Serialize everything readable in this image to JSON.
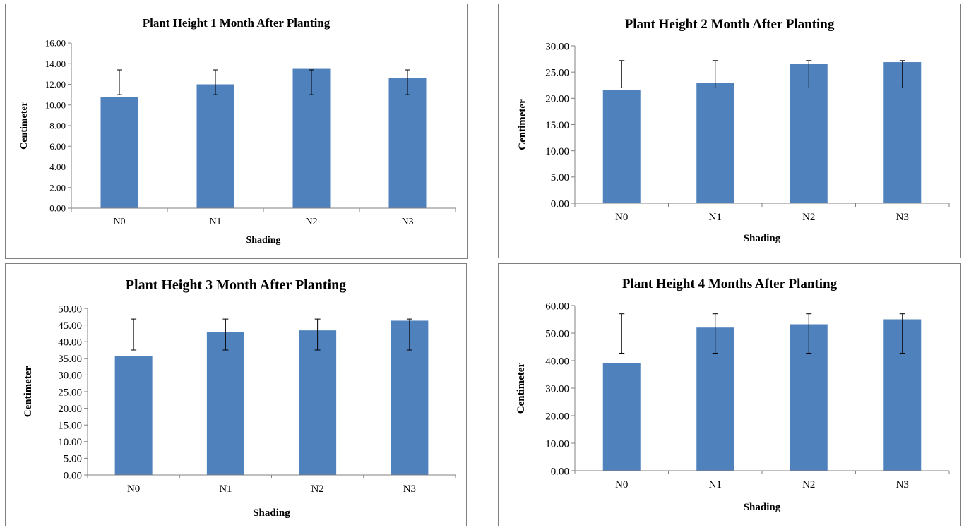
{
  "chart_data": [
    {
      "type": "bar",
      "title": "Plant Height 1 Month After Planting",
      "xlabel": "Shading",
      "ylabel": "Centimeter",
      "categories": [
        "N0",
        "N1",
        "N2",
        "N3"
      ],
      "values": [
        10.75,
        12.0,
        13.5,
        12.65
      ],
      "error_low": [
        11.0,
        11.0,
        11.0,
        11.0
      ],
      "error_high": [
        13.4,
        13.4,
        13.4,
        13.4
      ],
      "ylim": [
        0,
        16
      ],
      "ytick_step": 2,
      "ytick_labels": [
        "0.00",
        "2.00",
        "4.00",
        "6.00",
        "8.00",
        "10.00",
        "12.00",
        "14.00",
        "16.00"
      ],
      "grid": false,
      "legend": "none"
    },
    {
      "type": "bar",
      "title": "Plant Height 2 Month After Planting",
      "xlabel": "Shading",
      "ylabel": "Centimeter",
      "categories": [
        "N0",
        "N1",
        "N2",
        "N3"
      ],
      "values": [
        21.6,
        22.9,
        26.6,
        26.9
      ],
      "error_low": [
        22.0,
        22.0,
        22.0,
        22.0
      ],
      "error_high": [
        27.2,
        27.2,
        27.2,
        27.2
      ],
      "ylim": [
        0,
        30
      ],
      "ytick_step": 5,
      "ytick_labels": [
        "0.00",
        "5.00",
        "10.00",
        "15.00",
        "20.00",
        "25.00",
        "30.00"
      ],
      "grid": false,
      "legend": "none"
    },
    {
      "type": "bar",
      "title": "Plant Height 3 Month After Planting",
      "xlabel": "Shading",
      "ylabel": "Centimeter",
      "categories": [
        "N0",
        "N1",
        "N2",
        "N3"
      ],
      "values": [
        35.6,
        42.9,
        43.4,
        46.3
      ],
      "error_low": [
        37.5,
        37.5,
        37.5,
        37.5
      ],
      "error_high": [
        46.8,
        46.8,
        46.8,
        46.8
      ],
      "ylim": [
        0,
        50
      ],
      "ytick_step": 5,
      "ytick_labels": [
        "0.00",
        "5.00",
        "10.00",
        "15.00",
        "20.00",
        "25.00",
        "30.00",
        "35.00",
        "40.00",
        "45.00",
        "50.00"
      ],
      "grid": false,
      "legend": "none"
    },
    {
      "type": "bar",
      "title": "Plant Height 4 Months After Planting",
      "xlabel": "Shading",
      "ylabel": "Centimeter",
      "categories": [
        "N0",
        "N1",
        "N2",
        "N3"
      ],
      "values": [
        39.0,
        52.0,
        53.2,
        55.0
      ],
      "error_low": [
        42.7,
        42.7,
        42.7,
        42.7
      ],
      "error_high": [
        57.0,
        57.0,
        57.0,
        57.0
      ],
      "ylim": [
        0,
        60
      ],
      "ytick_step": 10,
      "ytick_labels": [
        "0.00",
        "10.00",
        "20.00",
        "30.00",
        "40.00",
        "50.00",
        "60.00"
      ],
      "grid": false,
      "legend": "none"
    }
  ],
  "colors": {
    "bar": "#4f81bd",
    "axis": "#808080",
    "border": "#7f7f7f"
  }
}
